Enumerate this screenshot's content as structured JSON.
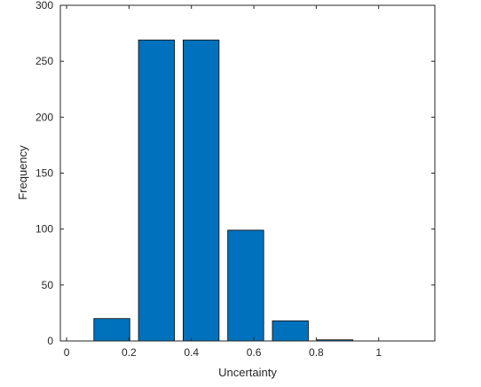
{
  "chart_data": {
    "type": "bar",
    "title": "",
    "xlabel": "Uncertainty",
    "ylabel": "Frequency",
    "xlim": [
      -0.02,
      1.18
    ],
    "ylim": [
      0,
      300
    ],
    "bar_width": 0.115,
    "bar_color": "#0072BD",
    "x": [
      0.145,
      0.288,
      0.431,
      0.574,
      0.717,
      0.86,
      1.003
    ],
    "values": [
      20,
      269,
      269,
      99,
      18,
      1,
      0
    ],
    "x_ticks": [
      0,
      0.2,
      0.4,
      0.6,
      0.8,
      1
    ],
    "x_tick_labels": [
      "0",
      "0.2",
      "0.4",
      "0.6",
      "0.8",
      "1"
    ],
    "y_ticks": [
      0,
      50,
      100,
      150,
      200,
      250,
      300
    ],
    "y_tick_labels": [
      "0",
      "50",
      "100",
      "150",
      "200",
      "250",
      "300"
    ],
    "grid": false,
    "legend": false
  }
}
